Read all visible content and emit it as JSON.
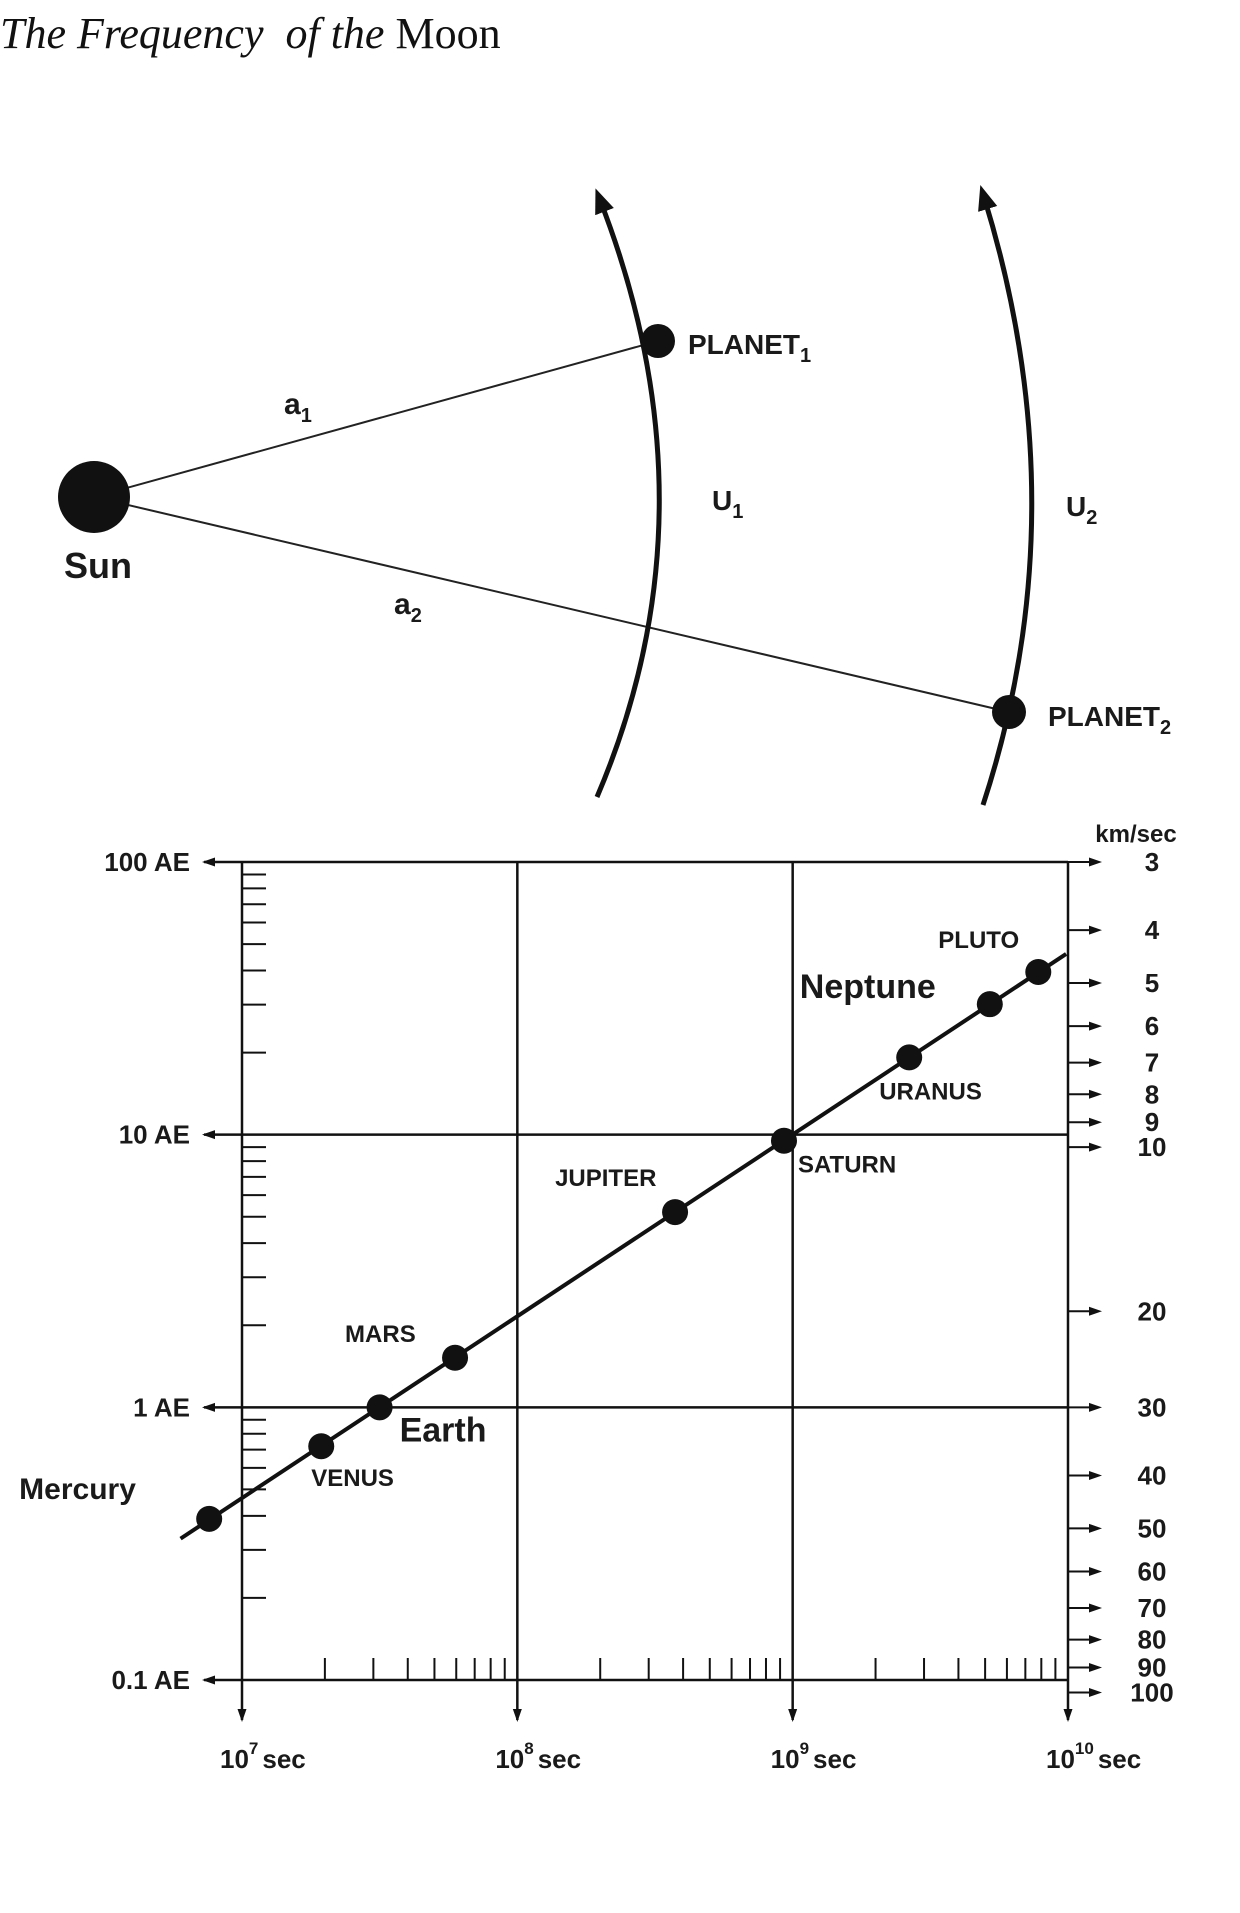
{
  "header": {
    "title_italic": "The Frequency  of the",
    "title_roman": "Moon"
  },
  "orbit_diagram": {
    "sun_label": "Sun",
    "a1": "a",
    "a1_sub": "1",
    "a2": "a",
    "a2_sub": "2",
    "u1": "U",
    "u1_sub": "1",
    "u2": "U",
    "u2_sub": "2",
    "planet1": "PLANET",
    "planet1_sub": "1",
    "planet2": "PLANET",
    "planet2_sub": "2"
  },
  "chart_data": {
    "type": "scatter",
    "x_scale": "log",
    "y_scale": "log",
    "xlim": [
      10000000,
      10000000000
    ],
    "ylim": [
      0.1,
      100
    ],
    "grid": true,
    "y_tick_labels": [
      {
        "v": 100,
        "label": "100 AE"
      },
      {
        "v": 10,
        "label": "10 AE"
      },
      {
        "v": 1,
        "label": "1 AE"
      },
      {
        "v": 0.1,
        "label": "0.1 AE"
      }
    ],
    "x_tick_labels": [
      {
        "v": 10000000,
        "base": "10",
        "exp": "7",
        "unit": "sec"
      },
      {
        "v": 100000000,
        "base": "10",
        "exp": "8",
        "unit": "sec"
      },
      {
        "v": 1000000000,
        "base": "10",
        "exp": "9",
        "unit": "sec"
      },
      {
        "v": 10000000000,
        "base": "10",
        "exp": "10",
        "unit": "sec"
      }
    ],
    "right_axis": {
      "label": "km/sec",
      "ticks": [
        3,
        4,
        5,
        6,
        7,
        8,
        9,
        10,
        20,
        30,
        40,
        50,
        60,
        70,
        80,
        90,
        100
      ]
    },
    "fit_line": true,
    "points": [
      {
        "name": "Mercury",
        "x": 7600000,
        "y": 0.39
      },
      {
        "name": "VENUS",
        "x": 19400000,
        "y": 0.72
      },
      {
        "name": "Earth",
        "x": 31600000,
        "y": 1.0
      },
      {
        "name": "MARS",
        "x": 59400000,
        "y": 1.52
      },
      {
        "name": "JUPITER",
        "x": 374000000,
        "y": 5.2
      },
      {
        "name": "SATURN",
        "x": 930000000,
        "y": 9.5
      },
      {
        "name": "URANUS",
        "x": 2650000000,
        "y": 19.2
      },
      {
        "name": "Neptune",
        "x": 5200000000,
        "y": 30.1
      },
      {
        "name": "PLUTO",
        "x": 7800000000,
        "y": 39.5
      }
    ]
  }
}
